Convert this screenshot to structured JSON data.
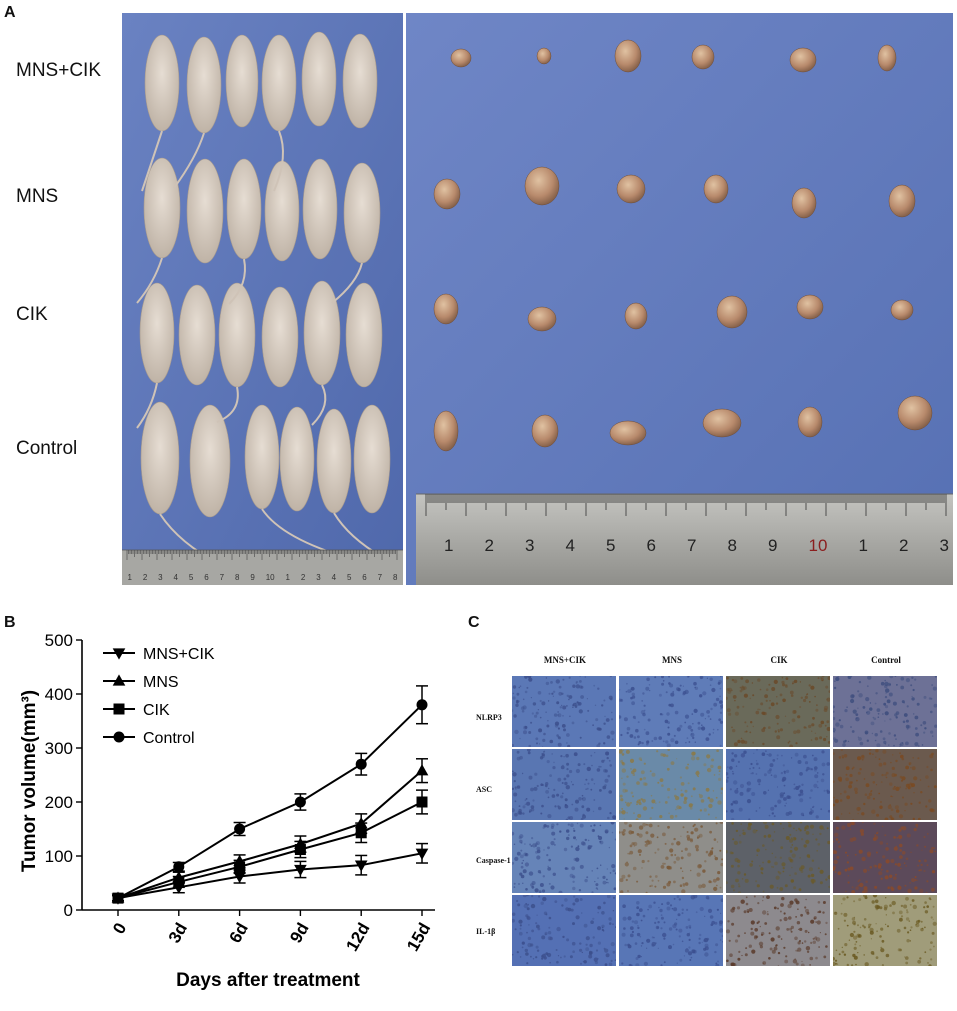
{
  "panelA": {
    "letter": "A",
    "row_labels": [
      "MNS+CIK",
      "MNS",
      "CIK",
      "Control"
    ],
    "left_ruler_numbers": [
      "1",
      "2",
      "3",
      "4",
      "5",
      "6",
      "7",
      "8",
      "9",
      "10",
      "1",
      "2",
      "3",
      "4",
      "5",
      "6",
      "7",
      "8"
    ],
    "right_ruler_numbers": [
      "1",
      "2",
      "3",
      "4",
      "5",
      "6",
      "7",
      "8",
      "9",
      "10",
      "1",
      "2",
      "3"
    ],
    "colors": {
      "background_blue": "#5d76b8",
      "mouse": "#d9cfc4",
      "tumor": "#b88a6c",
      "ruler": "#a9a9a6"
    }
  },
  "panelB": {
    "letter": "B",
    "chart_data": {
      "type": "line",
      "x": [
        "0",
        "3d",
        "6d",
        "9d",
        "12d",
        "15d"
      ],
      "ylabel": "Tumor volume(mm³)",
      "xlabel": "Days after treatment",
      "ylim": [
        0,
        500
      ],
      "yticks": [
        "0",
        "100",
        "200",
        "300",
        "400",
        "500"
      ],
      "legend_placement": "top-left",
      "series": [
        {
          "name": "MNS+CIK",
          "marker": "triangle-down",
          "values": [
            22,
            42,
            62,
            75,
            83,
            105
          ],
          "errors": [
            5,
            10,
            12,
            15,
            18,
            18
          ]
        },
        {
          "name": "MNS",
          "marker": "triangle-up",
          "values": [
            22,
            60,
            90,
            122,
            160,
            258
          ],
          "errors": [
            5,
            10,
            12,
            15,
            18,
            22
          ]
        },
        {
          "name": "CIK",
          "marker": "square",
          "values": [
            22,
            52,
            80,
            112,
            143,
            200
          ],
          "errors": [
            5,
            10,
            12,
            15,
            18,
            22
          ]
        },
        {
          "name": "Control",
          "marker": "circle",
          "values": [
            22,
            80,
            150,
            200,
            270,
            380
          ],
          "errors": [
            5,
            8,
            12,
            15,
            20,
            35
          ]
        }
      ]
    }
  },
  "panelC": {
    "letter": "C",
    "columns": [
      "MNS+CIK",
      "MNS",
      "CIK",
      "Control"
    ],
    "rows": [
      "NLRP3",
      "ASC",
      "Caspase-1",
      "IL-1β"
    ]
  }
}
